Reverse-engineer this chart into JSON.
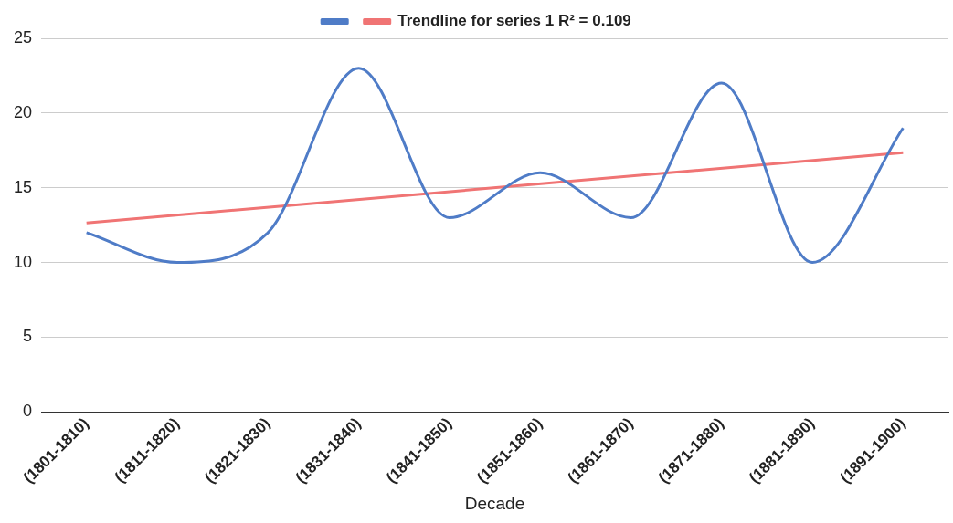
{
  "chart_data": {
    "type": "line",
    "xlabel": "Decade",
    "categories": [
      "(1801-1810)",
      "(1811-1820)",
      "(1821-1830)",
      "(1831-1840)",
      "(1841-1850)",
      "(1851-1860)",
      "(1861-1870)",
      "(1871-1880)",
      "(1881-1890)",
      "(1891-1900)"
    ],
    "series": [
      {
        "color": "#4f7cc7",
        "values": [
          12,
          10,
          12,
          23,
          13,
          16,
          13,
          22,
          10,
          19
        ]
      },
      {
        "name": "Trendline for series 1 R² = 0.109",
        "type": "line",
        "color": "#f07474",
        "x": [
          "(1801-1810)",
          "(1891-1900)"
        ],
        "values": [
          12.65,
          17.35
        ]
      }
    ],
    "ylim": [
      0,
      25
    ],
    "yticks": [
      0,
      5,
      10,
      15,
      20,
      25
    ],
    "grid": "y",
    "legend": "top",
    "marker": "none"
  }
}
